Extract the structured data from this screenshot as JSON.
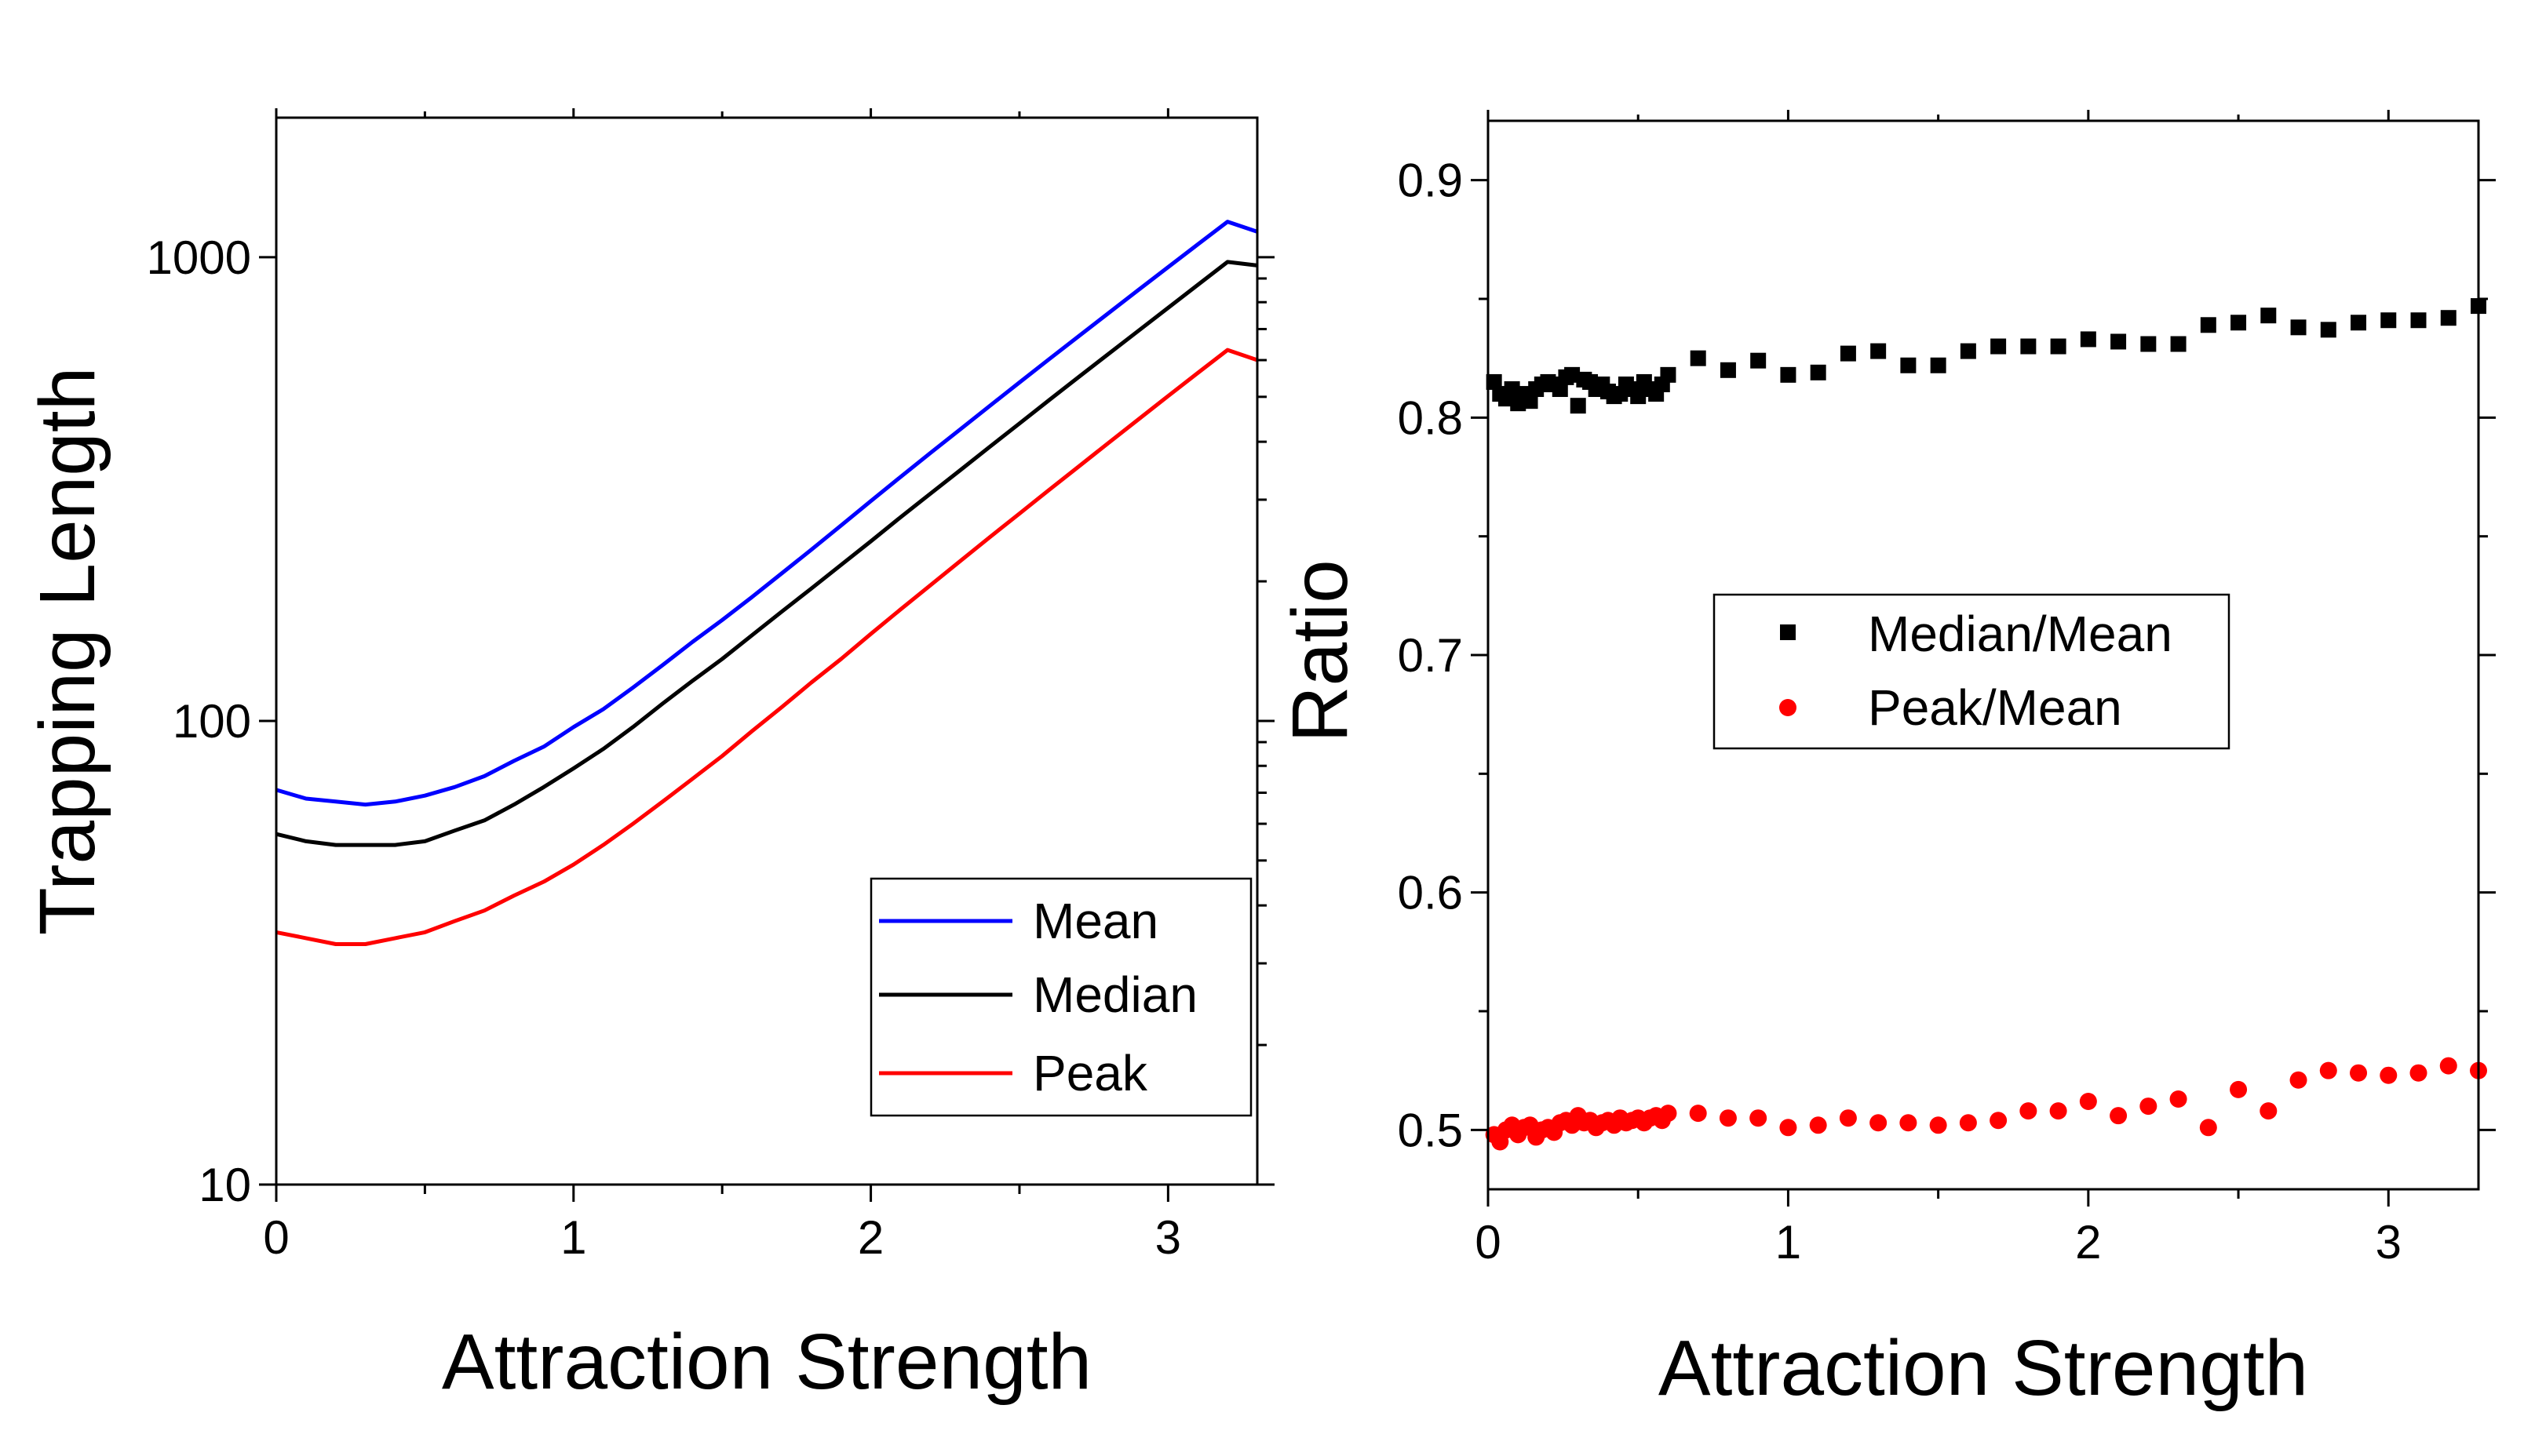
{
  "chart_data": [
    {
      "type": "line",
      "title": "",
      "xlabel": "Attraction Strength",
      "ylabel": "Trapping Length",
      "yscale": "log",
      "xlim": [
        0,
        3.3
      ],
      "ylim": [
        10,
        2000
      ],
      "xticks": [
        "0",
        "1",
        "2",
        "3"
      ],
      "yticks": [
        "10",
        "100",
        "1000"
      ],
      "x": [
        0,
        0.1,
        0.2,
        0.3,
        0.4,
        0.5,
        0.6,
        0.7,
        0.8,
        0.9,
        1.0,
        1.1,
        1.2,
        1.3,
        1.4,
        1.5,
        1.6,
        1.7,
        1.8,
        1.9,
        2.0,
        2.1,
        2.2,
        2.3,
        2.4,
        2.5,
        2.6,
        2.7,
        2.8,
        2.9,
        3.0,
        3.1,
        3.2,
        3.3
      ],
      "series": [
        {
          "name": "Mean",
          "color": "#0000ff",
          "values": [
            71,
            68,
            67,
            66,
            67,
            69,
            72,
            76,
            82,
            88,
            97,
            106,
            118,
            132,
            148,
            165,
            185,
            208,
            234,
            264,
            298,
            336,
            378,
            425,
            478,
            537,
            603,
            676,
            758,
            850,
            952,
            1066,
            1193,
            1135
          ]
        },
        {
          "name": "Median",
          "color": "#000000",
          "values": [
            57,
            55,
            54,
            54,
            54,
            55,
            58,
            61,
            66,
            72,
            79,
            87,
            97,
            109,
            122,
            136,
            153,
            172,
            193,
            217,
            244,
            275,
            309,
            347,
            390,
            438,
            492,
            552,
            619,
            694,
            778,
            872,
            977,
            960
          ]
        },
        {
          "name": "Peak",
          "color": "#ff0000",
          "values": [
            35,
            34,
            33,
            33,
            34,
            35,
            37,
            39,
            42,
            45,
            49,
            54,
            60,
            67,
            75,
            84,
            95,
            107,
            121,
            136,
            154,
            174,
            196,
            221,
            249,
            280,
            315,
            354,
            398,
            447,
            502,
            563,
            631,
            600
          ]
        }
      ],
      "legend": {
        "position": "bottom-right",
        "entries": [
          "Mean",
          "Median",
          "Peak"
        ]
      }
    },
    {
      "type": "scatter",
      "title": "",
      "xlabel": "Attraction Strength",
      "ylabel": "Ratio",
      "xlim": [
        0,
        3.3
      ],
      "ylim": [
        0.475,
        0.925
      ],
      "xticks": [
        "0",
        "1",
        "2",
        "3"
      ],
      "yticks": [
        "0.5",
        "0.6",
        "0.7",
        "0.8",
        "0.9"
      ],
      "series": [
        {
          "name": "Median/Mean",
          "color": "#000000",
          "marker": "square",
          "points": [
            [
              0.02,
              0.815
            ],
            [
              0.04,
              0.81
            ],
            [
              0.06,
              0.808
            ],
            [
              0.08,
              0.812
            ],
            [
              0.1,
              0.806
            ],
            [
              0.12,
              0.81
            ],
            [
              0.14,
              0.807
            ],
            [
              0.16,
              0.812
            ],
            [
              0.18,
              0.814
            ],
            [
              0.2,
              0.815
            ],
            [
              0.22,
              0.814
            ],
            [
              0.24,
              0.812
            ],
            [
              0.26,
              0.817
            ],
            [
              0.28,
              0.818
            ],
            [
              0.3,
              0.805
            ],
            [
              0.32,
              0.816
            ],
            [
              0.34,
              0.815
            ],
            [
              0.36,
              0.812
            ],
            [
              0.38,
              0.814
            ],
            [
              0.4,
              0.811
            ],
            [
              0.42,
              0.809
            ],
            [
              0.44,
              0.81
            ],
            [
              0.46,
              0.814
            ],
            [
              0.48,
              0.812
            ],
            [
              0.5,
              0.809
            ],
            [
              0.52,
              0.815
            ],
            [
              0.54,
              0.812
            ],
            [
              0.56,
              0.81
            ],
            [
              0.58,
              0.814
            ],
            [
              0.6,
              0.818
            ],
            [
              0.7,
              0.825
            ],
            [
              0.8,
              0.82
            ],
            [
              0.9,
              0.824
            ],
            [
              1.0,
              0.818
            ],
            [
              1.1,
              0.819
            ],
            [
              1.2,
              0.827
            ],
            [
              1.3,
              0.828
            ],
            [
              1.4,
              0.822
            ],
            [
              1.5,
              0.822
            ],
            [
              1.6,
              0.828
            ],
            [
              1.7,
              0.83
            ],
            [
              1.8,
              0.83
            ],
            [
              1.9,
              0.83
            ],
            [
              2.0,
              0.833
            ],
            [
              2.1,
              0.832
            ],
            [
              2.2,
              0.831
            ],
            [
              2.3,
              0.831
            ],
            [
              2.4,
              0.839
            ],
            [
              2.5,
              0.84
            ],
            [
              2.6,
              0.843
            ],
            [
              2.7,
              0.838
            ],
            [
              2.8,
              0.837
            ],
            [
              2.9,
              0.84
            ],
            [
              3.0,
              0.841
            ],
            [
              3.1,
              0.841
            ],
            [
              3.2,
              0.842
            ],
            [
              3.3,
              0.847
            ]
          ]
        },
        {
          "name": "Peak/Mean",
          "color": "#ff0000",
          "marker": "circle",
          "points": [
            [
              0.02,
              0.498
            ],
            [
              0.04,
              0.495
            ],
            [
              0.06,
              0.5
            ],
            [
              0.08,
              0.502
            ],
            [
              0.1,
              0.498
            ],
            [
              0.12,
              0.501
            ],
            [
              0.14,
              0.502
            ],
            [
              0.16,
              0.497
            ],
            [
              0.18,
              0.5
            ],
            [
              0.2,
              0.501
            ],
            [
              0.22,
              0.499
            ],
            [
              0.24,
              0.503
            ],
            [
              0.26,
              0.504
            ],
            [
              0.28,
              0.502
            ],
            [
              0.3,
              0.506
            ],
            [
              0.32,
              0.503
            ],
            [
              0.34,
              0.504
            ],
            [
              0.36,
              0.501
            ],
            [
              0.38,
              0.503
            ],
            [
              0.4,
              0.504
            ],
            [
              0.42,
              0.502
            ],
            [
              0.44,
              0.505
            ],
            [
              0.46,
              0.503
            ],
            [
              0.48,
              0.504
            ],
            [
              0.5,
              0.505
            ],
            [
              0.52,
              0.503
            ],
            [
              0.54,
              0.505
            ],
            [
              0.56,
              0.506
            ],
            [
              0.58,
              0.504
            ],
            [
              0.6,
              0.507
            ],
            [
              0.7,
              0.507
            ],
            [
              0.8,
              0.505
            ],
            [
              0.9,
              0.505
            ],
            [
              1.0,
              0.501
            ],
            [
              1.1,
              0.502
            ],
            [
              1.2,
              0.505
            ],
            [
              1.3,
              0.503
            ],
            [
              1.4,
              0.503
            ],
            [
              1.5,
              0.502
            ],
            [
              1.6,
              0.503
            ],
            [
              1.7,
              0.504
            ],
            [
              1.8,
              0.508
            ],
            [
              1.9,
              0.508
            ],
            [
              2.0,
              0.512
            ],
            [
              2.1,
              0.506
            ],
            [
              2.2,
              0.51
            ],
            [
              2.3,
              0.513
            ],
            [
              2.4,
              0.501
            ],
            [
              2.5,
              0.517
            ],
            [
              2.6,
              0.508
            ],
            [
              2.7,
              0.521
            ],
            [
              2.8,
              0.525
            ],
            [
              2.9,
              0.524
            ],
            [
              3.0,
              0.523
            ],
            [
              3.1,
              0.524
            ],
            [
              3.2,
              0.527
            ],
            [
              3.3,
              0.525
            ]
          ]
        }
      ],
      "legend": {
        "position": "center-right",
        "entries": [
          "Median/Mean",
          "Peak/Mean"
        ]
      }
    }
  ]
}
